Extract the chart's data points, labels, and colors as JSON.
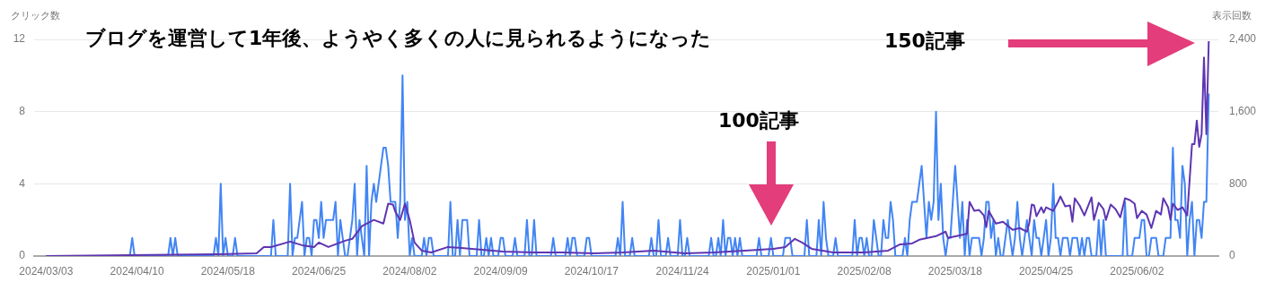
{
  "chart_data": {
    "type": "line",
    "title": "ブログを運営して1年後、ようやく多くの人に見られるようになった",
    "ylabel": "クリック数",
    "y2label": "表示回数",
    "annotations": [
      "100記事",
      "150記事"
    ],
    "xlim": [
      "2024-02-27",
      "2025-07-06"
    ],
    "xticks": [
      {
        "value": "2024-03-03",
        "label": "2024/03/03"
      },
      {
        "value": "2024-04-10",
        "label": "2024/04/10"
      },
      {
        "value": "2024-05-18",
        "label": "2024/05/18"
      },
      {
        "value": "2024-06-25",
        "label": "2024/06/25"
      },
      {
        "value": "2024-08-02",
        "label": "2024/08/02"
      },
      {
        "value": "2024-09-09",
        "label": "2024/09/09"
      },
      {
        "value": "2024-10-17",
        "label": "2024/10/17"
      },
      {
        "value": "2024-11-24",
        "label": "2024/11/24"
      },
      {
        "value": "2025-01-01",
        "label": "2025/01/01"
      },
      {
        "value": "2025-02-08",
        "label": "2025/02/08"
      },
      {
        "value": "2025-03-18",
        "label": "2025/03/18"
      },
      {
        "value": "2025-04-25",
        "label": "2025/04/25"
      },
      {
        "value": "2025-06-02",
        "label": "2025/06/02"
      }
    ],
    "ylim": [
      0,
      12
    ],
    "yticks": [
      0,
      4,
      8,
      12
    ],
    "y2lim": [
      0,
      2400
    ],
    "y2ticks": [
      0,
      800,
      {
        "value": 1600,
        "label": "1,600"
      },
      {
        "value": 2400,
        "label": "2,400"
      }
    ],
    "grid": "y",
    "legend": false,
    "marker": "none",
    "line_style": "solid",
    "series": [
      {
        "color": "#5e35b1",
        "axis": "y2",
        "x": [
          "2024-03-03",
          "2024-05-13",
          "2024-05-30",
          "2024-06-02",
          "2024-06-05",
          "2024-06-13",
          "2024-06-18",
          "2024-06-23",
          "2024-06-25",
          "2024-06-29",
          "2024-07-01",
          "2024-07-06",
          "2024-07-09",
          "2024-07-13",
          "2024-07-18",
          "2024-07-22",
          "2024-07-24",
          "2024-07-26",
          "2024-07-27",
          "2024-07-29",
          "2024-07-31",
          "2024-08-02",
          "2024-08-04",
          "2024-08-07",
          "2024-08-11",
          "2024-08-18",
          "2024-08-28",
          "2024-09-10",
          "2024-09-23",
          "2024-10-05",
          "2024-10-18",
          "2024-10-30",
          "2024-11-12",
          "2024-11-25",
          "2024-12-07",
          "2024-12-20",
          "2025-01-01",
          "2025-01-06",
          "2025-01-10",
          "2025-01-13",
          "2025-01-17",
          "2025-01-26",
          "2025-02-08",
          "2025-02-18",
          "2025-02-23",
          "2025-02-28",
          "2025-03-03",
          "2025-03-10",
          "2025-03-14",
          "2025-03-15",
          "2025-03-22",
          "2025-03-23",
          "2025-03-24",
          "2025-03-26",
          "2025-03-28",
          "2025-03-30",
          "2025-03-31",
          "2025-04-01",
          "2025-04-04",
          "2025-04-07",
          "2025-04-11",
          "2025-04-14",
          "2025-04-17",
          "2025-04-18",
          "2025-04-19",
          "2025-04-20",
          "2025-04-21",
          "2025-04-23",
          "2025-04-24",
          "2025-04-25",
          "2025-04-28",
          "2025-04-30",
          "2025-05-01",
          "2025-05-03",
          "2025-05-05",
          "2025-05-06",
          "2025-05-07",
          "2025-05-09",
          "2025-05-11",
          "2025-05-14",
          "2025-05-15",
          "2025-05-17",
          "2025-05-19",
          "2025-05-20",
          "2025-05-22",
          "2025-05-24",
          "2025-05-26",
          "2025-05-28",
          "2025-05-30",
          "2025-06-01",
          "2025-06-02",
          "2025-06-04",
          "2025-06-06",
          "2025-06-08",
          "2025-06-10",
          "2025-06-12",
          "2025-06-13",
          "2025-06-15",
          "2025-06-16",
          "2025-06-17",
          "2025-06-19",
          "2025-06-21",
          "2025-06-23",
          "2025-06-25",
          "2025-06-26",
          "2025-06-27",
          "2025-06-28",
          "2025-06-29",
          "2025-06-30",
          "2025-07-01",
          "2025-07-02"
        ],
        "values": [
          0,
          20,
          30,
          100,
          100,
          160,
          120,
          100,
          150,
          100,
          120,
          170,
          190,
          330,
          400,
          360,
          580,
          570,
          490,
          400,
          580,
          400,
          150,
          60,
          40,
          100,
          80,
          50,
          40,
          40,
          30,
          40,
          60,
          30,
          40,
          60,
          80,
          100,
          190,
          150,
          80,
          40,
          40,
          60,
          130,
          140,
          180,
          220,
          270,
          200,
          240,
          250,
          600,
          500,
          510,
          450,
          320,
          500,
          360,
          380,
          290,
          310,
          270,
          370,
          570,
          560,
          440,
          540,
          480,
          540,
          500,
          600,
          660,
          550,
          560,
          380,
          640,
          560,
          450,
          650,
          400,
          590,
          520,
          400,
          570,
          520,
          430,
          640,
          620,
          580,
          420,
          500,
          460,
          310,
          500,
          460,
          640,
          540,
          400,
          580,
          510,
          540,
          450,
          1240,
          1240,
          1500,
          1210,
          1350,
          2200,
          1350,
          2380
        ]
      },
      {
        "color": "#4285f4",
        "x": [
          "2024-03-03",
          "2024-04-07",
          "2024-04-08",
          "2024-04-09",
          "2024-04-23",
          "2024-04-24",
          "2024-04-25",
          "2024-04-26",
          "2024-04-27",
          "2024-05-12",
          "2024-05-13",
          "2024-05-14",
          "2024-05-15",
          "2024-05-16",
          "2024-05-17",
          "2024-05-18",
          "2024-05-20",
          "2024-05-21",
          "2024-05-22",
          "2024-06-05",
          "2024-06-06",
          "2024-06-07",
          "2024-06-12",
          "2024-06-13",
          "2024-06-14",
          "2024-06-15",
          "2024-06-16",
          "2024-06-18",
          "2024-06-19",
          "2024-06-20",
          "2024-06-21",
          "2024-06-22",
          "2024-06-23",
          "2024-06-24",
          "2024-06-25",
          "2024-06-26",
          "2024-06-27",
          "2024-06-28",
          "2024-06-29",
          "2024-06-30",
          "2024-07-01",
          "2024-07-02",
          "2024-07-03",
          "2024-07-04",
          "2024-07-05",
          "2024-07-06",
          "2024-07-07",
          "2024-07-08",
          "2024-07-09",
          "2024-07-10",
          "2024-07-11",
          "2024-07-12",
          "2024-07-13",
          "2024-07-14",
          "2024-07-15",
          "2024-07-16",
          "2024-07-17",
          "2024-07-18",
          "2024-07-19",
          "2024-07-20",
          "2024-07-21",
          "2024-07-22",
          "2024-07-23",
          "2024-07-24",
          "2024-07-25",
          "2024-07-26",
          "2024-07-27",
          "2024-07-28",
          "2024-07-29",
          "2024-07-30",
          "2024-07-31",
          "2024-08-01",
          "2024-08-02",
          "2024-08-03",
          "2024-08-04",
          "2024-08-07",
          "2024-08-08",
          "2024-08-09",
          "2024-08-10",
          "2024-08-11",
          "2024-08-12",
          "2024-08-18",
          "2024-08-19",
          "2024-08-20",
          "2024-08-21",
          "2024-08-22",
          "2024-08-23",
          "2024-08-24",
          "2024-08-25",
          "2024-08-26",
          "2024-08-27",
          "2024-08-30",
          "2024-08-31",
          "2024-09-01",
          "2024-09-02",
          "2024-09-03",
          "2024-09-04",
          "2024-09-05",
          "2024-09-06",
          "2024-09-08",
          "2024-09-09",
          "2024-09-10",
          "2024-09-11",
          "2024-09-14",
          "2024-09-15",
          "2024-09-16",
          "2024-09-19",
          "2024-09-20",
          "2024-09-21",
          "2024-09-22",
          "2024-09-23",
          "2024-09-24",
          "2024-09-30",
          "2024-10-01",
          "2024-10-02",
          "2024-10-06",
          "2024-10-07",
          "2024-10-08",
          "2024-10-09",
          "2024-10-10",
          "2024-10-11",
          "2024-10-14",
          "2024-10-15",
          "2024-10-16",
          "2024-10-17",
          "2024-10-27",
          "2024-10-28",
          "2024-10-29",
          "2024-10-30",
          "2024-10-31",
          "2024-11-02",
          "2024-11-03",
          "2024-11-04",
          "2024-11-10",
          "2024-11-11",
          "2024-11-12",
          "2024-11-13",
          "2024-11-14",
          "2024-11-15",
          "2024-11-17",
          "2024-11-18",
          "2024-11-19",
          "2024-11-22",
          "2024-11-23",
          "2024-11-24",
          "2024-11-25",
          "2024-11-26",
          "2024-11-27",
          "2024-12-05",
          "2024-12-06",
          "2024-12-07",
          "2024-12-08",
          "2024-12-09",
          "2024-12-10",
          "2024-12-11",
          "2024-12-12",
          "2024-12-13",
          "2024-12-14",
          "2024-12-15",
          "2024-12-16",
          "2024-12-17",
          "2024-12-18",
          "2024-12-19",
          "2024-12-25",
          "2024-12-26",
          "2024-12-27",
          "2024-12-30",
          "2024-12-31",
          "2025-01-01",
          "2025-01-05",
          "2025-01-06",
          "2025-01-07",
          "2025-01-08",
          "2025-01-09",
          "2025-01-14",
          "2025-01-15",
          "2025-01-16",
          "2025-01-19",
          "2025-01-20",
          "2025-01-21",
          "2025-01-22",
          "2025-01-23",
          "2025-01-24",
          "2025-01-26",
          "2025-01-27",
          "2025-01-28",
          "2025-02-03",
          "2025-02-04",
          "2025-02-05",
          "2025-02-06",
          "2025-02-07",
          "2025-02-08",
          "2025-02-09",
          "2025-02-10",
          "2025-02-11",
          "2025-02-12",
          "2025-02-13",
          "2025-02-14",
          "2025-02-15",
          "2025-02-16",
          "2025-02-17",
          "2025-02-18",
          "2025-02-19",
          "2025-02-20",
          "2025-02-21",
          "2025-02-24",
          "2025-02-25",
          "2025-02-26",
          "2025-02-27",
          "2025-02-28",
          "2025-03-01",
          "2025-03-02",
          "2025-03-04",
          "2025-03-05",
          "2025-03-06",
          "2025-03-07",
          "2025-03-08",
          "2025-03-09",
          "2025-03-10",
          "2025-03-11",
          "2025-03-12",
          "2025-03-13",
          "2025-03-14",
          "2025-03-15",
          "2025-03-16",
          "2025-03-17",
          "2025-03-18",
          "2025-03-19",
          "2025-03-20",
          "2025-03-21",
          "2025-03-22",
          "2025-03-23",
          "2025-03-24",
          "2025-03-25",
          "2025-03-26",
          "2025-03-27",
          "2025-03-28",
          "2025-03-29",
          "2025-03-30",
          "2025-03-31",
          "2025-04-01",
          "2025-04-02",
          "2025-04-03",
          "2025-04-04",
          "2025-04-05",
          "2025-04-06",
          "2025-04-07",
          "2025-04-08",
          "2025-04-09",
          "2025-04-10",
          "2025-04-11",
          "2025-04-12",
          "2025-04-13",
          "2025-04-14",
          "2025-04-15",
          "2025-04-16",
          "2025-04-17",
          "2025-04-18",
          "2025-04-19",
          "2025-04-20",
          "2025-04-21",
          "2025-04-22",
          "2025-04-23",
          "2025-04-24",
          "2025-04-25",
          "2025-04-26",
          "2025-04-27",
          "2025-04-28",
          "2025-04-29",
          "2025-04-30",
          "2025-05-01",
          "2025-05-02",
          "2025-05-03",
          "2025-05-04",
          "2025-05-05",
          "2025-05-06",
          "2025-05-07",
          "2025-05-08",
          "2025-05-09",
          "2025-05-10",
          "2025-05-11",
          "2025-05-12",
          "2025-05-13",
          "2025-05-14",
          "2025-05-16",
          "2025-05-17",
          "2025-05-18",
          "2025-05-19",
          "2025-05-20",
          "2025-05-27",
          "2025-05-28",
          "2025-05-29",
          "2025-05-31",
          "2025-06-01",
          "2025-06-02",
          "2025-06-03",
          "2025-06-04",
          "2025-06-05",
          "2025-06-06",
          "2025-06-07",
          "2025-06-08",
          "2025-06-09",
          "2025-06-10",
          "2025-06-11",
          "2025-06-13",
          "2025-06-14",
          "2025-06-15",
          "2025-06-16",
          "2025-06-17",
          "2025-06-18",
          "2025-06-19",
          "2025-06-20",
          "2025-06-21",
          "2025-06-22",
          "2025-06-23",
          "2025-06-24",
          "2025-06-25",
          "2025-06-26",
          "2025-06-27",
          "2025-06-28",
          "2025-06-29",
          "2025-06-30",
          "2025-07-01",
          "2025-07-02"
        ],
        "values": [
          0,
          0,
          1,
          0,
          0,
          1,
          0,
          1,
          0,
          0,
          1,
          0,
          4,
          0,
          1,
          0,
          0,
          1,
          0,
          0,
          2,
          0,
          0,
          4,
          0,
          1,
          1,
          3,
          0,
          1,
          1,
          0,
          2,
          2,
          1,
          3,
          1,
          2,
          2,
          2,
          2,
          3,
          0,
          2,
          1,
          0,
          0,
          1,
          2,
          4,
          0,
          2,
          1,
          0,
          5,
          0,
          3,
          4,
          3,
          4,
          5,
          6,
          6,
          5,
          3,
          3,
          3,
          1,
          3,
          10,
          2,
          3,
          0,
          1,
          0,
          0,
          1,
          0,
          1,
          1,
          0,
          0,
          3,
          0,
          0,
          2,
          0,
          2,
          2,
          2,
          0,
          0,
          2,
          0,
          0,
          1,
          0,
          1,
          0,
          0,
          1,
          1,
          0,
          0,
          1,
          0,
          0,
          2,
          0,
          0,
          2,
          0,
          0,
          1,
          0,
          0,
          1,
          0,
          1,
          1,
          0,
          0,
          1,
          1,
          0,
          0,
          1,
          0,
          3,
          0,
          0,
          1,
          0,
          0,
          1,
          0,
          0,
          2,
          0,
          0,
          1,
          0,
          0,
          2,
          0,
          0,
          1,
          0,
          0,
          1,
          0,
          0,
          1,
          0,
          2,
          0,
          1,
          1,
          0,
          1,
          0,
          1,
          0,
          0,
          1,
          0,
          0,
          1,
          0,
          0,
          1,
          1,
          1,
          0,
          0,
          2,
          0,
          0,
          2,
          0,
          3,
          1,
          0,
          0,
          1,
          0,
          0,
          2,
          0,
          1,
          1,
          0,
          1,
          0,
          0,
          2,
          1,
          0,
          0,
          2,
          1,
          1,
          3,
          2,
          0,
          0,
          1,
          0,
          2,
          3,
          3,
          3,
          5,
          3,
          1,
          3,
          2,
          3,
          8,
          2,
          4,
          1,
          0,
          1,
          1,
          3,
          5,
          3,
          1,
          3,
          0,
          2,
          0,
          1,
          1,
          1,
          1,
          0,
          1,
          3,
          3,
          1,
          2,
          0,
          1,
          0,
          0,
          1,
          2,
          1,
          0,
          1,
          3,
          1,
          0,
          1,
          2,
          1,
          0,
          2,
          1,
          1,
          0,
          1,
          2,
          0,
          1,
          4,
          1,
          1,
          0,
          1,
          1,
          1,
          0,
          1,
          1,
          1,
          0,
          1,
          0,
          1,
          1,
          0,
          0,
          2,
          0,
          2,
          0,
          0,
          3,
          0,
          0,
          1,
          1,
          1,
          2,
          2,
          0,
          0,
          1,
          1,
          1,
          0,
          0,
          1,
          1,
          1,
          6,
          2,
          2,
          1,
          5,
          4,
          0,
          2,
          3,
          0,
          2,
          2,
          1,
          3,
          3,
          9
        ]
      }
    ]
  }
}
